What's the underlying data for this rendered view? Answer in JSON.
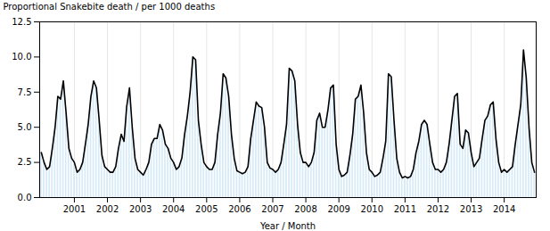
{
  "chart_data": {
    "type": "bar",
    "xlabel": "Year / Month",
    "ylabel": "Proportional Snakebite death / per 1000 deaths",
    "x": [
      2000,
      2000.083333,
      2000.166667,
      2000.25,
      2000.333333,
      2000.416667,
      2000.5,
      2000.583333,
      2000.666667,
      2000.75,
      2000.833333,
      2000.916667,
      2001,
      2001.083333,
      2001.166667,
      2001.25,
      2001.333333,
      2001.416667,
      2001.5,
      2001.583333,
      2001.666667,
      2001.75,
      2001.833333,
      2001.916667,
      2002,
      2002.083333,
      2002.166667,
      2002.25,
      2002.333333,
      2002.416667,
      2002.5,
      2002.583333,
      2002.666667,
      2002.75,
      2002.833333,
      2002.916667,
      2003,
      2003.083333,
      2003.166667,
      2003.25,
      2003.333333,
      2003.416667,
      2003.5,
      2003.583333,
      2003.666667,
      2003.75,
      2003.833333,
      2003.916667,
      2004,
      2004.083333,
      2004.166667,
      2004.25,
      2004.333333,
      2004.416667,
      2004.5,
      2004.583333,
      2004.666667,
      2004.75,
      2004.833333,
      2004.916667,
      2005,
      2005.083333,
      2005.166667,
      2005.25,
      2005.333333,
      2005.416667,
      2005.5,
      2005.583333,
      2005.666667,
      2005.75,
      2005.833333,
      2005.916667,
      2006,
      2006.083333,
      2006.166667,
      2006.25,
      2006.333333,
      2006.416667,
      2006.5,
      2006.583333,
      2006.666667,
      2006.75,
      2006.833333,
      2006.916667,
      2007,
      2007.083333,
      2007.166667,
      2007.25,
      2007.333333,
      2007.416667,
      2007.5,
      2007.583333,
      2007.666667,
      2007.75,
      2007.833333,
      2007.916667,
      2008,
      2008.083333,
      2008.166667,
      2008.25,
      2008.333333,
      2008.416667,
      2008.5,
      2008.583333,
      2008.666667,
      2008.75,
      2008.833333,
      2008.916667,
      2009,
      2009.083333,
      2009.166667,
      2009.25,
      2009.333333,
      2009.416667,
      2009.5,
      2009.583333,
      2009.666667,
      2009.75,
      2009.833333,
      2009.916667,
      2010,
      2010.083333,
      2010.166667,
      2010.25,
      2010.333333,
      2010.416667,
      2010.5,
      2010.583333,
      2010.666667,
      2010.75,
      2010.833333,
      2010.916667,
      2011,
      2011.083333,
      2011.166667,
      2011.25,
      2011.333333,
      2011.416667,
      2011.5,
      2011.583333,
      2011.666667,
      2011.75,
      2011.833333,
      2011.916667,
      2012,
      2012.083333,
      2012.166667,
      2012.25,
      2012.333333,
      2012.416667,
      2012.5,
      2012.583333,
      2012.666667,
      2012.75,
      2012.833333,
      2012.916667,
      2013,
      2013.083333,
      2013.166667,
      2013.25,
      2013.333333,
      2013.416667,
      2013.5,
      2013.583333,
      2013.666667,
      2013.75,
      2013.833333,
      2013.916667,
      2014,
      2014.083333,
      2014.166667,
      2014.25,
      2014.333333,
      2014.416667,
      2014.5,
      2014.583333,
      2014.666667,
      2014.75,
      2014.833333,
      2014.916667
    ],
    "series": [
      {
        "type": "bar",
        "color": "#d6eaf8",
        "values": [
          3.2,
          2.5,
          2.0,
          2.2,
          3.5,
          5.0,
          7.2,
          7.0,
          8.3,
          6.0,
          3.5,
          2.8,
          2.5,
          1.8,
          2.0,
          2.5,
          3.8,
          5.2,
          7.2,
          8.3,
          7.8,
          5.5,
          3.0,
          2.2,
          2.0,
          1.8,
          1.8,
          2.2,
          3.5,
          4.5,
          4.0,
          6.5,
          7.8,
          5.0,
          2.8,
          2.0,
          1.8,
          1.6,
          2.0,
          2.5,
          3.8,
          4.2,
          4.2,
          5.2,
          4.8,
          3.8,
          3.5,
          2.8,
          2.5,
          2.0,
          2.2,
          2.8,
          4.5,
          5.8,
          7.5,
          10.0,
          9.8,
          5.5,
          3.8,
          2.5,
          2.2,
          2.0,
          2.0,
          2.5,
          4.5,
          6.0,
          8.8,
          8.5,
          7.2,
          4.5,
          2.8,
          1.9,
          1.8,
          1.7,
          1.8,
          2.2,
          4.2,
          5.5,
          6.8,
          6.5,
          6.4,
          5.0,
          2.5,
          2.1,
          2.0,
          1.8,
          2.0,
          2.5,
          3.8,
          5.2,
          9.2,
          9.0,
          8.3,
          5.2,
          3.2,
          2.5,
          2.5,
          2.2,
          2.5,
          3.2,
          5.5,
          6.0,
          5.0,
          5.0,
          6.2,
          7.8,
          8.0,
          3.8,
          2.0,
          1.5,
          1.6,
          1.8,
          3.0,
          4.5,
          7.0,
          7.2,
          8.0,
          6.0,
          3.2,
          2.0,
          1.8,
          1.5,
          1.6,
          1.8,
          2.8,
          4.0,
          8.8,
          8.6,
          5.5,
          2.8,
          1.8,
          1.4,
          1.5,
          1.4,
          1.5,
          2.0,
          3.2,
          4.0,
          5.2,
          5.5,
          5.2,
          3.8,
          2.5,
          2.0,
          2.0,
          1.8,
          2.0,
          2.5,
          3.8,
          5.5,
          7.2,
          7.4,
          3.8,
          3.5,
          4.8,
          4.6,
          3.2,
          2.2,
          2.5,
          2.8,
          4.2,
          5.5,
          5.8,
          6.6,
          6.8,
          4.2,
          2.5,
          1.8,
          2.0,
          1.8,
          2.0,
          2.2,
          3.8,
          5.2,
          6.6,
          10.5,
          8.5,
          5.0,
          2.5,
          1.8
        ]
      },
      {
        "type": "line",
        "color": "#000000",
        "values": [
          3.2,
          2.5,
          2.0,
          2.2,
          3.5,
          5.0,
          7.2,
          7.0,
          8.3,
          6.0,
          3.5,
          2.8,
          2.5,
          1.8,
          2.0,
          2.5,
          3.8,
          5.2,
          7.2,
          8.3,
          7.8,
          5.5,
          3.0,
          2.2,
          2.0,
          1.8,
          1.8,
          2.2,
          3.5,
          4.5,
          4.0,
          6.5,
          7.8,
          5.0,
          2.8,
          2.0,
          1.8,
          1.6,
          2.0,
          2.5,
          3.8,
          4.2,
          4.2,
          5.2,
          4.8,
          3.8,
          3.5,
          2.8,
          2.5,
          2.0,
          2.2,
          2.8,
          4.5,
          5.8,
          7.5,
          10.0,
          9.8,
          5.5,
          3.8,
          2.5,
          2.2,
          2.0,
          2.0,
          2.5,
          4.5,
          6.0,
          8.8,
          8.5,
          7.2,
          4.5,
          2.8,
          1.9,
          1.8,
          1.7,
          1.8,
          2.2,
          4.2,
          5.5,
          6.8,
          6.5,
          6.4,
          5.0,
          2.5,
          2.1,
          2.0,
          1.8,
          2.0,
          2.5,
          3.8,
          5.2,
          9.2,
          9.0,
          8.3,
          5.2,
          3.2,
          2.5,
          2.5,
          2.2,
          2.5,
          3.2,
          5.5,
          6.0,
          5.0,
          5.0,
          6.2,
          7.8,
          8.0,
          3.8,
          2.0,
          1.5,
          1.6,
          1.8,
          3.0,
          4.5,
          7.0,
          7.2,
          8.0,
          6.0,
          3.2,
          2.0,
          1.8,
          1.5,
          1.6,
          1.8,
          2.8,
          4.0,
          8.8,
          8.6,
          5.5,
          2.8,
          1.8,
          1.4,
          1.5,
          1.4,
          1.5,
          2.0,
          3.2,
          4.0,
          5.2,
          5.5,
          5.2,
          3.8,
          2.5,
          2.0,
          2.0,
          1.8,
          2.0,
          2.5,
          3.8,
          5.5,
          7.2,
          7.4,
          3.8,
          3.5,
          4.8,
          4.6,
          3.2,
          2.2,
          2.5,
          2.8,
          4.2,
          5.5,
          5.8,
          6.6,
          6.8,
          4.2,
          2.5,
          1.8,
          2.0,
          1.8,
          2.0,
          2.2,
          3.8,
          5.2,
          6.6,
          10.5,
          8.5,
          5.0,
          2.5,
          1.8
        ]
      }
    ],
    "xlim": [
      1999.95,
      2014.966667
    ],
    "xticks": [
      2001,
      2002,
      2003,
      2004,
      2005,
      2006,
      2007,
      2008,
      2009,
      2010,
      2011,
      2012,
      2013,
      2014
    ],
    "ylim": [
      0.0,
      12.5
    ],
    "yticks": [
      {
        "value": 0.0,
        "label": "0.0"
      },
      2.5,
      {
        "value": 5.0,
        "label": "5.0"
      },
      7.5,
      {
        "value": 10.0,
        "label": "10.0"
      },
      12.5
    ],
    "grid": "x"
  }
}
